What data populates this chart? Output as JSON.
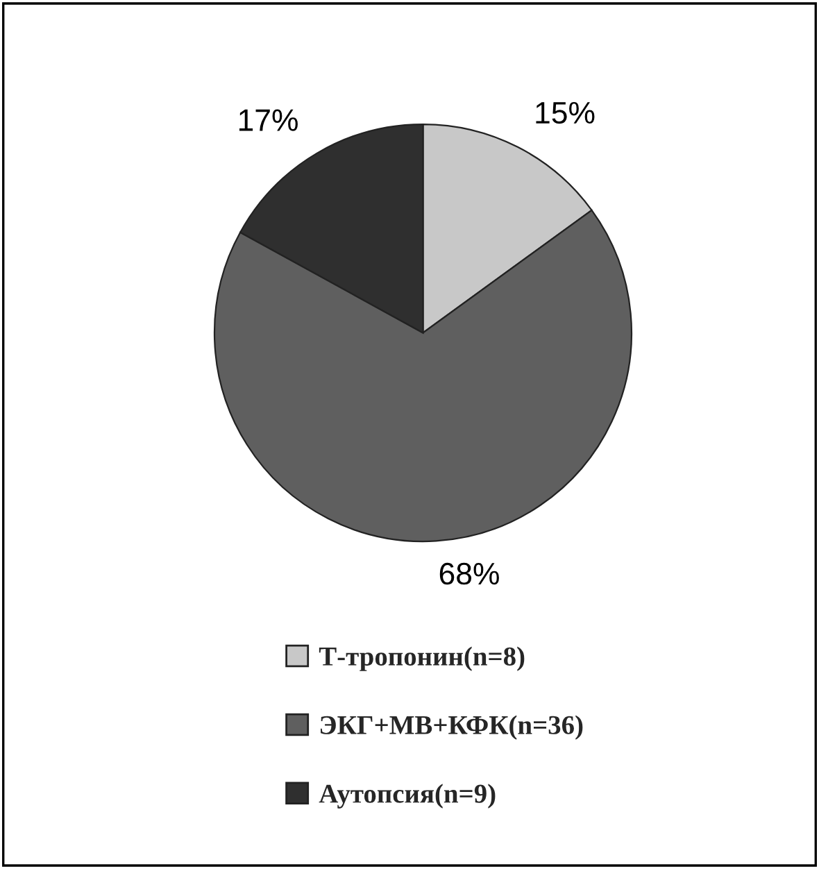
{
  "chart_data": {
    "type": "pie",
    "categories": [
      "Т-тропонин(n=8)",
      "ЭКГ+МВ+КФК(n=36)",
      "Аутопсия(n=9)"
    ],
    "values": [
      15,
      68,
      17
    ],
    "value_labels": [
      "15%",
      "68%",
      "17%"
    ],
    "colors": [
      "#c8c8c8",
      "#5f5f5f",
      "#2f2f2f"
    ],
    "legend": "bottom"
  }
}
